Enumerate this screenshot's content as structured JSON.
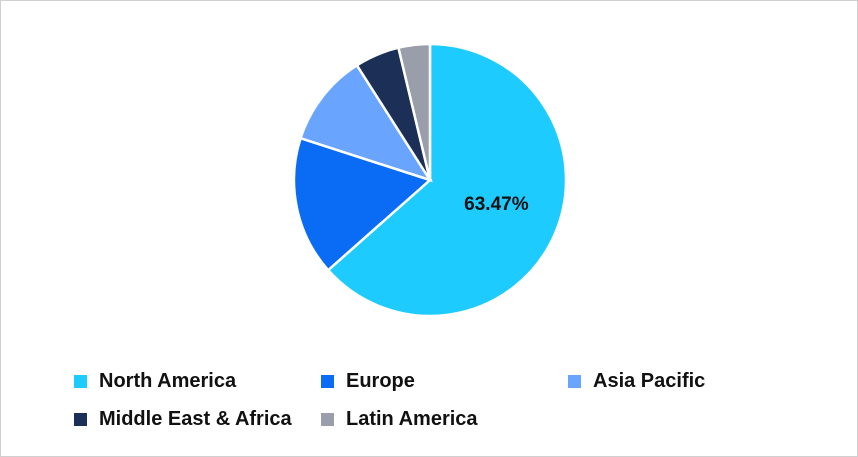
{
  "chart_data": {
    "type": "pie",
    "title": "",
    "start_angle": "top",
    "direction": "clockwise",
    "slices": [
      {
        "label": "North America",
        "value": 63.47,
        "color": "#1ECBFF",
        "data_label": "63.47%"
      },
      {
        "label": "Europe",
        "value": 16.5,
        "color": "#0A6CF5",
        "data_label": ""
      },
      {
        "label": "Asia Pacific",
        "value": 11.0,
        "color": "#69A5FF",
        "data_label": ""
      },
      {
        "label": "Middle East & Africa",
        "value": 5.3,
        "color": "#1B2F57",
        "data_label": ""
      },
      {
        "label": "Latin America",
        "value": 3.73,
        "color": "#9A9EAA",
        "data_label": ""
      }
    ],
    "legend_placement": "bottom"
  }
}
